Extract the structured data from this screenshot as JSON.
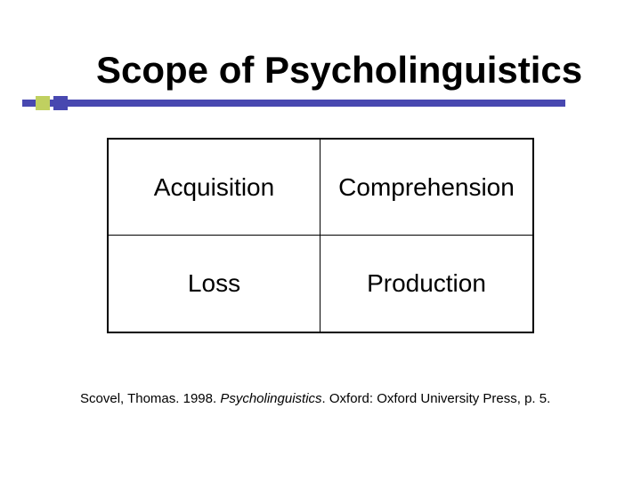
{
  "title": "Scope of Psycholinguistics",
  "accent": {
    "bar_color": "#4848b0",
    "square1_color": "#c0d060",
    "square2_color": "#4848b0"
  },
  "grid": {
    "type": "table",
    "rows": 2,
    "cols": 2,
    "border_color": "#000000",
    "cells": {
      "tl": "Acquisition",
      "tr": "Comprehension",
      "bl": "Loss",
      "br": "Production"
    },
    "cell_fontsize": 28
  },
  "citation": {
    "prefix": "Scovel, Thomas. 1998. ",
    "title_italic": "Psycholinguistics",
    "suffix": ". Oxford: Oxford University Press, p. 5."
  },
  "title_fontsize": 42,
  "background_color": "#ffffff",
  "text_color": "#000000"
}
